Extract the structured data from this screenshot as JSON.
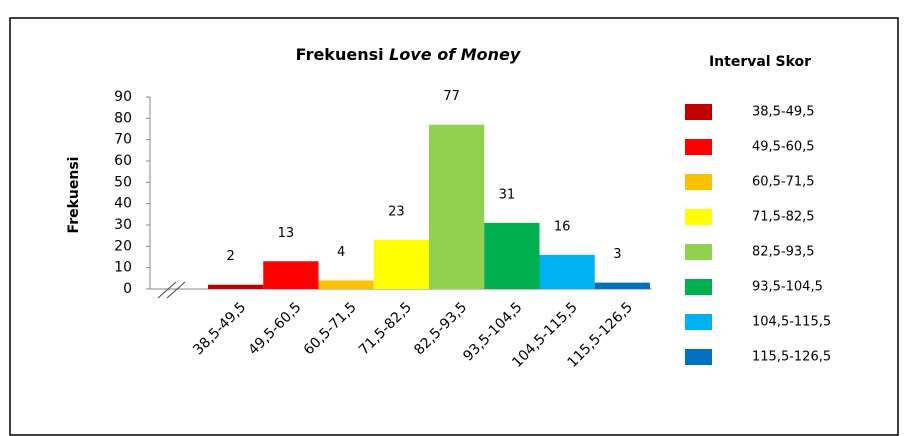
{
  "chart_data": {
    "type": "bar",
    "title": [
      "Frekuensi",
      "Love of Money"
    ],
    "y_label": "Frekuensi",
    "legend_title": "Interval Skor",
    "categories": [
      "38,5-49,5",
      "49,5-60,5",
      "60,5-71,5",
      "71,5-82,5",
      "82,5-93,5",
      "93,5-104,5",
      "104,5-115,5",
      "115,5-126,5"
    ],
    "values": [
      2,
      13,
      4,
      23,
      77,
      31,
      16,
      3
    ],
    "colors": [
      "#c00000",
      "#ff0000",
      "#ffc000",
      "#ffff00",
      "#92d050",
      "#00b050",
      "#00b0f0",
      "#0070c0"
    ],
    "ylim": [
      0,
      90
    ],
    "yticks": [
      0,
      10,
      20,
      30,
      40,
      50,
      60,
      70,
      80,
      90
    ],
    "grid": false,
    "legend": "right"
  }
}
